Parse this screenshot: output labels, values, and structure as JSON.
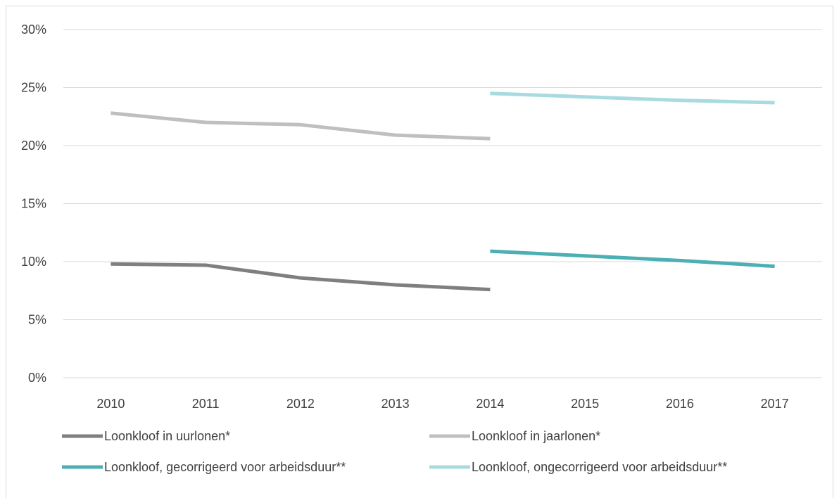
{
  "chart_data": {
    "type": "line",
    "title": "",
    "xlabel": "",
    "ylabel": "",
    "categories": [
      "2010",
      "2011",
      "2012",
      "2013",
      "2014",
      "2015",
      "2016",
      "2017"
    ],
    "y_ticks": [
      "0%",
      "5%",
      "10%",
      "15%",
      "20%",
      "25%",
      "30%"
    ],
    "ylim": [
      0,
      30
    ],
    "grid": true,
    "legend_position": "bottom",
    "series": [
      {
        "name": "Loonkloof in uurlonen*",
        "color": "#7f7f7f",
        "values": [
          9.8,
          9.7,
          8.6,
          8.0,
          7.6,
          null,
          null,
          null
        ]
      },
      {
        "name": "Loonkloof in jaarlonen*",
        "color": "#bfbfbf",
        "values": [
          22.8,
          22.0,
          21.8,
          20.9,
          20.6,
          null,
          null,
          null
        ]
      },
      {
        "name": "Loonkloof, gecorrigeerd voor arbeidsduur**",
        "color": "#4bafb4",
        "values": [
          null,
          null,
          null,
          null,
          10.9,
          10.5,
          10.1,
          9.6
        ]
      },
      {
        "name": "Loonkloof, ongecorrigeerd voor arbeidsduur**",
        "color": "#a8dbe0",
        "values": [
          null,
          null,
          null,
          null,
          24.5,
          24.2,
          23.9,
          23.7
        ]
      }
    ]
  }
}
